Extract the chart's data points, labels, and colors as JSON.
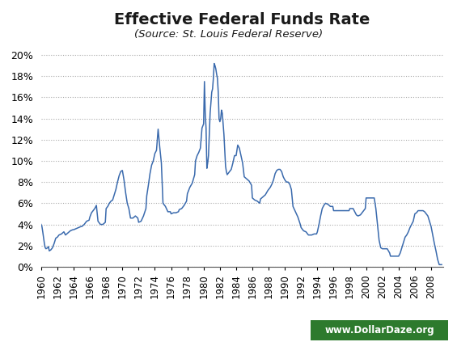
{
  "title": "Effective Federal Funds Rate",
  "subtitle": "(Source: St. Louis Federal Reserve)",
  "line_color": "#3a6aad",
  "background_color": "#ffffff",
  "title_color": "#1a1a1a",
  "subtitle_color": "#1a1a1a",
  "watermark_text": "www.DollarDaze.org",
  "watermark_bg": "#2d7a2d",
  "watermark_text_color": "#ffffff",
  "ylim": [
    0,
    0.21
  ],
  "yticks": [
    0.0,
    0.02,
    0.04,
    0.06,
    0.08,
    0.1,
    0.12,
    0.14,
    0.16,
    0.18,
    0.2
  ],
  "ytick_labels": [
    "0%",
    "2%",
    "4%",
    "6%",
    "8%",
    "10%",
    "12%",
    "14%",
    "16%",
    "18%",
    "20%"
  ],
  "xlim": [
    1960,
    2009.5
  ],
  "xtick_years": [
    1960,
    1962,
    1964,
    1966,
    1968,
    1970,
    1972,
    1974,
    1976,
    1978,
    1980,
    1982,
    1984,
    1986,
    1988,
    1990,
    1992,
    1994,
    1996,
    1998,
    2000,
    2002,
    2004,
    2006,
    2008
  ],
  "years": [
    1960.0,
    1960.1,
    1960.2,
    1960.4,
    1960.5,
    1960.6,
    1960.8,
    1960.9,
    1961.0,
    1961.2,
    1961.4,
    1961.6,
    1961.8,
    1962.0,
    1962.2,
    1962.5,
    1962.8,
    1963.0,
    1963.3,
    1963.6,
    1963.9,
    1964.0,
    1964.3,
    1964.6,
    1964.9,
    1965.0,
    1965.3,
    1965.6,
    1965.9,
    1966.0,
    1966.2,
    1966.4,
    1966.6,
    1966.8,
    1967.0,
    1967.3,
    1967.6,
    1967.9,
    1968.0,
    1968.2,
    1968.4,
    1968.6,
    1968.8,
    1969.0,
    1969.2,
    1969.4,
    1969.6,
    1969.8,
    1970.0,
    1970.2,
    1970.4,
    1970.6,
    1970.8,
    1971.0,
    1971.3,
    1971.6,
    1971.9,
    1972.0,
    1972.3,
    1972.6,
    1972.9,
    1973.0,
    1973.2,
    1973.4,
    1973.6,
    1973.8,
    1974.0,
    1974.2,
    1974.4,
    1974.6,
    1974.8,
    1975.0,
    1975.3,
    1975.6,
    1975.9,
    1976.0,
    1976.3,
    1976.6,
    1976.9,
    1977.0,
    1977.3,
    1977.6,
    1977.9,
    1978.0,
    1978.3,
    1978.6,
    1978.9,
    1979.0,
    1979.2,
    1979.4,
    1979.6,
    1979.8,
    1980.0,
    1980.1,
    1980.2,
    1980.3,
    1980.4,
    1980.5,
    1980.6,
    1980.7,
    1980.8,
    1980.9,
    1981.0,
    1981.1,
    1981.2,
    1981.3,
    1981.4,
    1981.5,
    1981.6,
    1981.7,
    1981.8,
    1981.9,
    1982.0,
    1982.1,
    1982.2,
    1982.3,
    1982.4,
    1982.5,
    1982.6,
    1982.7,
    1982.8,
    1982.9,
    1983.0,
    1983.2,
    1983.4,
    1983.6,
    1983.8,
    1984.0,
    1984.2,
    1984.4,
    1984.6,
    1984.8,
    1985.0,
    1985.3,
    1985.6,
    1985.9,
    1986.0,
    1986.3,
    1986.6,
    1986.9,
    1987.0,
    1987.3,
    1987.6,
    1987.9,
    1988.0,
    1988.2,
    1988.4,
    1988.6,
    1988.8,
    1989.0,
    1989.2,
    1989.4,
    1989.6,
    1989.8,
    1990.0,
    1990.2,
    1990.4,
    1990.6,
    1990.8,
    1991.0,
    1991.3,
    1991.6,
    1991.9,
    1992.0,
    1992.3,
    1992.6,
    1992.9,
    1993.0,
    1993.3,
    1993.6,
    1993.9,
    1994.0,
    1994.2,
    1994.4,
    1994.6,
    1994.8,
    1995.0,
    1995.3,
    1995.6,
    1995.9,
    1996.0,
    1996.3,
    1996.6,
    1996.9,
    1997.0,
    1997.3,
    1997.6,
    1997.9,
    1998.0,
    1998.2,
    1998.4,
    1998.6,
    1998.8,
    1999.0,
    1999.3,
    1999.6,
    1999.9,
    2000.0,
    2000.2,
    2000.4,
    2000.6,
    2000.8,
    2001.0,
    2001.2,
    2001.4,
    2001.6,
    2001.8,
    2002.0,
    2002.3,
    2002.6,
    2002.9,
    2003.0,
    2003.3,
    2003.6,
    2003.9,
    2004.0,
    2004.2,
    2004.4,
    2004.6,
    2004.8,
    2005.0,
    2005.2,
    2005.4,
    2005.6,
    2005.8,
    2006.0,
    2006.2,
    2006.4,
    2006.6,
    2006.8,
    2007.0,
    2007.2,
    2007.4,
    2007.6,
    2007.8,
    2008.0,
    2008.2,
    2008.4,
    2008.6,
    2008.8,
    2009.0,
    2009.3
  ],
  "values": [
    0.04,
    0.038,
    0.033,
    0.022,
    0.018,
    0.017,
    0.018,
    0.019,
    0.015,
    0.016,
    0.018,
    0.022,
    0.027,
    0.028,
    0.03,
    0.031,
    0.033,
    0.03,
    0.032,
    0.034,
    0.035,
    0.035,
    0.036,
    0.037,
    0.038,
    0.038,
    0.04,
    0.043,
    0.044,
    0.047,
    0.051,
    0.053,
    0.055,
    0.058,
    0.043,
    0.04,
    0.04,
    0.042,
    0.055,
    0.057,
    0.06,
    0.062,
    0.063,
    0.068,
    0.073,
    0.08,
    0.086,
    0.09,
    0.091,
    0.082,
    0.07,
    0.06,
    0.055,
    0.046,
    0.046,
    0.048,
    0.046,
    0.042,
    0.043,
    0.048,
    0.055,
    0.067,
    0.077,
    0.088,
    0.096,
    0.1,
    0.107,
    0.11,
    0.13,
    0.113,
    0.098,
    0.06,
    0.057,
    0.052,
    0.052,
    0.05,
    0.051,
    0.051,
    0.052,
    0.054,
    0.055,
    0.058,
    0.062,
    0.069,
    0.075,
    0.079,
    0.087,
    0.1,
    0.105,
    0.108,
    0.112,
    0.131,
    0.135,
    0.175,
    0.145,
    0.131,
    0.093,
    0.098,
    0.105,
    0.125,
    0.145,
    0.155,
    0.165,
    0.168,
    0.178,
    0.192,
    0.19,
    0.187,
    0.182,
    0.178,
    0.165,
    0.14,
    0.137,
    0.14,
    0.148,
    0.145,
    0.135,
    0.125,
    0.11,
    0.095,
    0.09,
    0.087,
    0.088,
    0.09,
    0.092,
    0.098,
    0.105,
    0.105,
    0.115,
    0.112,
    0.105,
    0.098,
    0.085,
    0.083,
    0.081,
    0.077,
    0.065,
    0.063,
    0.062,
    0.06,
    0.064,
    0.066,
    0.068,
    0.072,
    0.073,
    0.075,
    0.078,
    0.082,
    0.088,
    0.091,
    0.092,
    0.092,
    0.09,
    0.085,
    0.082,
    0.08,
    0.08,
    0.078,
    0.073,
    0.057,
    0.052,
    0.047,
    0.04,
    0.037,
    0.034,
    0.033,
    0.03,
    0.03,
    0.03,
    0.031,
    0.031,
    0.033,
    0.04,
    0.048,
    0.055,
    0.058,
    0.06,
    0.059,
    0.057,
    0.057,
    0.053,
    0.053,
    0.053,
    0.053,
    0.053,
    0.053,
    0.053,
    0.053,
    0.055,
    0.055,
    0.055,
    0.052,
    0.049,
    0.048,
    0.049,
    0.052,
    0.055,
    0.065,
    0.065,
    0.065,
    0.065,
    0.065,
    0.065,
    0.055,
    0.04,
    0.025,
    0.018,
    0.017,
    0.017,
    0.017,
    0.013,
    0.01,
    0.01,
    0.01,
    0.01,
    0.01,
    0.013,
    0.018,
    0.023,
    0.028,
    0.03,
    0.033,
    0.037,
    0.04,
    0.043,
    0.05,
    0.051,
    0.053,
    0.053,
    0.053,
    0.053,
    0.052,
    0.05,
    0.048,
    0.043,
    0.038,
    0.03,
    0.022,
    0.015,
    0.007,
    0.002,
    0.002
  ]
}
